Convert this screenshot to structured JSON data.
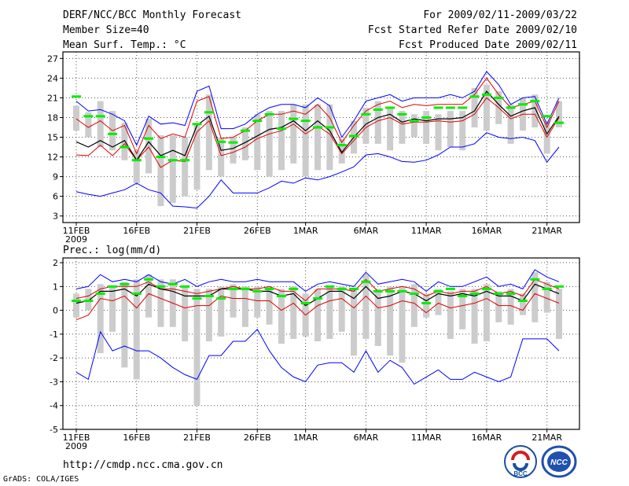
{
  "header": {
    "title": "DERF/NCC/BCC Monthly Forecast",
    "member_size": "Member Size=40",
    "variable": "Mean Surf. Temp.: °C",
    "period": "For 2009/02/11-2009/03/22",
    "start_ref": "Fcst Started Refer Date 2009/02/10",
    "produced": "Fcst Produced Date 2009/02/11"
  },
  "footer": {
    "url": "http://cmdp.ncc.cma.gov.cn",
    "credit": "GrADS: COLA/IGES",
    "logo_left_text": "BCC",
    "logo_right_text": "NCC"
  },
  "colors": {
    "envelope": "#0000ff",
    "spread": "#e00000",
    "mean": "#000000",
    "obs": "#00ee00",
    "bar": "#cccccc"
  },
  "chart_data": [
    {
      "type": "line",
      "title": "Mean Surf. Temp.: °C",
      "x_tick_labels": [
        "11FEB",
        "16FEB",
        "21FEB",
        "26FEB",
        "1MAR",
        "6MAR",
        "11MAR",
        "16MAR",
        "21MAR"
      ],
      "x_tick_days": [
        0,
        5,
        10,
        15,
        19,
        24,
        29,
        34,
        39
      ],
      "x_sublabel": "2009",
      "ylim": [
        2,
        28
      ],
      "y_ticks": [
        3,
        6,
        9,
        12,
        15,
        18,
        21,
        24,
        27
      ],
      "series": [
        {
          "name": "max",
          "values": [
            20.5,
            19,
            19.2,
            18.5,
            17.5,
            13.8,
            18.2,
            17,
            17.2,
            16.8,
            22,
            22.8,
            16.3,
            16.3,
            17,
            18.5,
            19.5,
            20,
            20,
            19.5,
            21,
            19.8,
            15,
            17.5,
            20.5,
            21,
            21.5,
            20.5,
            21,
            21,
            21,
            21.5,
            21,
            22,
            25,
            23,
            20,
            21,
            21.2,
            17,
            21
          ]
        },
        {
          "name": "upper",
          "values": [
            17.8,
            16.5,
            17.5,
            16,
            16.8,
            12.5,
            16.8,
            14.8,
            15.5,
            15,
            20.5,
            21.2,
            14.8,
            15,
            16,
            17.5,
            18.5,
            18.5,
            19,
            18.5,
            20,
            18,
            14.2,
            16.8,
            19,
            20,
            20.5,
            19.5,
            20,
            19.8,
            20,
            20,
            20,
            21.5,
            24,
            21.5,
            19.5,
            20,
            20.5,
            16.5,
            20.5
          ]
        },
        {
          "name": "mean",
          "values": [
            14.3,
            13.5,
            14.5,
            13.5,
            14.5,
            11.5,
            14.3,
            12.2,
            13,
            12.2,
            16.8,
            18.2,
            13,
            13.3,
            14.2,
            15.2,
            16.2,
            16.5,
            17.5,
            16,
            17.5,
            16,
            12.7,
            15,
            17,
            18,
            18.5,
            17.3,
            17.8,
            17.5,
            17.8,
            17.8,
            18,
            19,
            22,
            20,
            18.2,
            19,
            19.5,
            15.5,
            18.2
          ]
        },
        {
          "name": "lower",
          "values": [
            12.3,
            12.2,
            13.8,
            12.2,
            14,
            11.5,
            13.5,
            10.4,
            11.5,
            11.3,
            15.8,
            17.5,
            12.2,
            12.7,
            13.5,
            14.8,
            15.5,
            16,
            17,
            15.5,
            16.7,
            15.5,
            12.5,
            14.5,
            16.5,
            17.5,
            18,
            17,
            17.3,
            17.3,
            17.5,
            17.3,
            17.5,
            18.5,
            21,
            19.5,
            17.8,
            18.5,
            18.5,
            15,
            18
          ]
        },
        {
          "name": "min",
          "values": [
            6.7,
            6.3,
            6,
            6.5,
            7,
            8,
            7,
            6.5,
            4.5,
            4.4,
            4.2,
            6,
            8.5,
            6.5,
            6.5,
            6.5,
            7.3,
            8.3,
            8,
            8.8,
            8.5,
            9,
            9.7,
            10.5,
            12.3,
            12.5,
            12,
            11.3,
            11.2,
            11.5,
            12.3,
            13.5,
            13.5,
            14,
            15.7,
            15,
            14.8,
            15,
            14.5,
            11.2,
            13.5
          ]
        },
        {
          "name": "bar_high",
          "values": [
            19.8,
            18.8,
            20.5,
            19,
            17.2,
            13,
            17.8,
            15.3,
            15.3,
            15,
            16.8,
            21.5,
            15,
            15,
            16.5,
            18.5,
            19,
            19,
            20,
            20,
            20,
            20,
            14.8,
            17.5,
            19.5,
            20.5,
            19.5,
            19,
            18.5,
            19,
            18.5,
            19,
            19,
            22.5,
            23,
            22,
            20,
            21,
            21.5,
            17.5,
            20.5
          ]
        },
        {
          "name": "bar_low",
          "values": [
            16,
            15,
            13.5,
            13,
            11.5,
            8,
            9.5,
            4.5,
            5,
            6,
            7,
            10,
            9,
            11,
            11.5,
            10,
            9,
            10,
            11,
            9,
            10,
            10,
            11,
            12.5,
            14,
            14,
            13,
            14,
            15,
            14,
            13,
            13.5,
            13,
            16.5,
            16,
            17,
            14,
            16,
            16.5,
            12.5,
            16.5
          ]
        },
        {
          "name": "observed",
          "values": [
            21.2,
            18.2,
            18.2,
            15.5,
            13.5,
            11.5,
            14.8,
            12,
            11.5,
            11.5,
            17,
            18.8,
            14.3,
            14.2,
            16,
            17.5,
            18.5,
            16.3,
            17.8,
            17.5,
            16.5,
            16.5,
            13.8,
            15.2,
            18.5,
            19.2,
            19.5,
            18.5,
            17.5,
            18,
            19.5,
            19.5,
            19.5,
            21.2,
            21.5,
            21,
            19.5,
            20,
            20.5,
            18.2,
            17.2
          ]
        }
      ]
    },
    {
      "type": "line",
      "title": "Prec.: log(mm/d)",
      "x_tick_labels": [
        "11FEB",
        "16FEB",
        "21FEB",
        "26FEB",
        "1MAR",
        "6MAR",
        "11MAR",
        "16MAR",
        "21MAR"
      ],
      "x_tick_days": [
        0,
        5,
        10,
        15,
        19,
        24,
        29,
        34,
        39
      ],
      "x_sublabel": "2009",
      "ylim": [
        -5,
        2.2
      ],
      "y_ticks": [
        -5,
        -4,
        -3,
        -2,
        -1,
        0,
        1,
        2
      ],
      "series": [
        {
          "name": "max",
          "values": [
            0.9,
            1,
            1.5,
            1.2,
            1.3,
            1.2,
            1.5,
            1.2,
            1.1,
            1.3,
            1,
            1.2,
            1.3,
            1.2,
            1.2,
            1.3,
            1.2,
            1.2,
            1.2,
            0.8,
            1.1,
            1.2,
            1.1,
            1,
            1.6,
            1.1,
            1.2,
            1.3,
            1.2,
            0.8,
            1.2,
            1,
            1,
            1.2,
            1.4,
            1,
            1.1,
            0.9,
            1.7,
            1.4,
            1.2
          ]
        },
        {
          "name": "upper",
          "values": [
            0.5,
            0.6,
            0.9,
            1,
            1,
            1,
            1.2,
            0.9,
            0.9,
            0.8,
            0.7,
            0.8,
            0.9,
            1,
            0.9,
            0.9,
            1,
            0.8,
            0.8,
            0.4,
            0.9,
            0.9,
            0.9,
            0.8,
            1.3,
            0.8,
            0.9,
            1,
            0.9,
            0.6,
            0.8,
            0.7,
            0.8,
            0.8,
            1,
            0.7,
            0.8,
            0.6,
            1.3,
            1.1,
            0.9
          ]
        },
        {
          "name": "mean",
          "values": [
            0.3,
            0.4,
            0.8,
            0.8,
            0.9,
            0.6,
            1.1,
            0.9,
            0.8,
            0.6,
            0.6,
            0.6,
            0.9,
            0.9,
            0.9,
            0.8,
            0.8,
            0.6,
            0.7,
            0.2,
            0.5,
            0.8,
            0.8,
            0.5,
            1,
            0.5,
            0.6,
            0.8,
            0.7,
            0.4,
            0.7,
            0.6,
            0.7,
            0.6,
            0.8,
            0.6,
            0.6,
            0.4,
            1.1,
            0.9,
            0.7
          ]
        },
        {
          "name": "lower",
          "values": [
            -0.4,
            -0.2,
            0.5,
            0.4,
            0.6,
            0.1,
            0.7,
            0.5,
            0.3,
            0.1,
            0.2,
            0.2,
            0.6,
            0.5,
            0.5,
            0.4,
            0.4,
            0,
            0.3,
            -0.2,
            0.2,
            0.4,
            0.5,
            0.1,
            0.6,
            0.1,
            0.2,
            0.4,
            0.3,
            -0.1,
            0.3,
            0.1,
            0.2,
            0.3,
            0.5,
            0.2,
            0.2,
            0,
            0.7,
            0.5,
            0.3
          ]
        },
        {
          "name": "min",
          "values": [
            -2.6,
            -2.9,
            -0.9,
            -1.7,
            -1.5,
            -1.7,
            -1.7,
            -2,
            -2.4,
            -2.7,
            -2.9,
            -1.9,
            -1.9,
            -1.3,
            -1.3,
            -0.8,
            -1.7,
            -2.4,
            -2.8,
            -3,
            -2.3,
            -2.2,
            -2.2,
            -2.6,
            -1.7,
            -2.6,
            -2.1,
            -2.4,
            -3.1,
            -2.8,
            -2.5,
            -2.9,
            -2.9,
            -2.6,
            -2.8,
            -3,
            -2.8,
            -1.2,
            -1.2,
            -1.2,
            -1.7
          ]
        },
        {
          "name": "bar_high",
          "values": [
            0.7,
            0.9,
            1.1,
            1,
            1.2,
            1.3,
            1.5,
            1.3,
            1.3,
            1,
            0.9,
            0.9,
            1,
            1.1,
            1,
            1,
            1,
            0.9,
            1,
            0.7,
            0.9,
            1,
            1,
            0.9,
            1.5,
            0.9,
            1,
            1,
            1.1,
            0.7,
            0.9,
            0.8,
            0.9,
            0.9,
            1.1,
            0.8,
            0.9,
            0.7,
            1.6,
            1.2,
            0.9
          ]
        },
        {
          "name": "bar_low",
          "values": [
            -0.3,
            0,
            -1.8,
            -0.9,
            -2.4,
            -2.9,
            -0.3,
            -0.7,
            -0.7,
            -1.3,
            -4,
            -1.3,
            -1.1,
            -0.3,
            -0.7,
            -0.3,
            -0.6,
            -1.4,
            -1.2,
            -1.1,
            -1.3,
            -1.2,
            -0.9,
            -1.9,
            -1.2,
            -1.5,
            -1.9,
            -2.2,
            -0.7,
            -0.3,
            -0.2,
            -1.2,
            -0.8,
            -1.4,
            -1.3,
            -0.5,
            -0.6,
            -0.2,
            -0.5,
            -0.1,
            -1.2
          ]
        },
        {
          "name": "observed",
          "values": [
            0.4,
            0.4,
            0.7,
            1,
            1.1,
            0.7,
            1.3,
            1,
            1.1,
            1,
            0.5,
            0.6,
            0.5,
            0.9,
            0.9,
            0.8,
            0.9,
            0.6,
            0.9,
            0.3,
            0.5,
            1,
            0.9,
            0.9,
            1.2,
            0.8,
            0.8,
            0.8,
            0.7,
            0.3,
            0.8,
            0.9,
            0.6,
            0.7,
            0.9,
            0.7,
            0.7,
            0.4,
            1.3,
            0.9,
            1
          ]
        }
      ]
    }
  ]
}
